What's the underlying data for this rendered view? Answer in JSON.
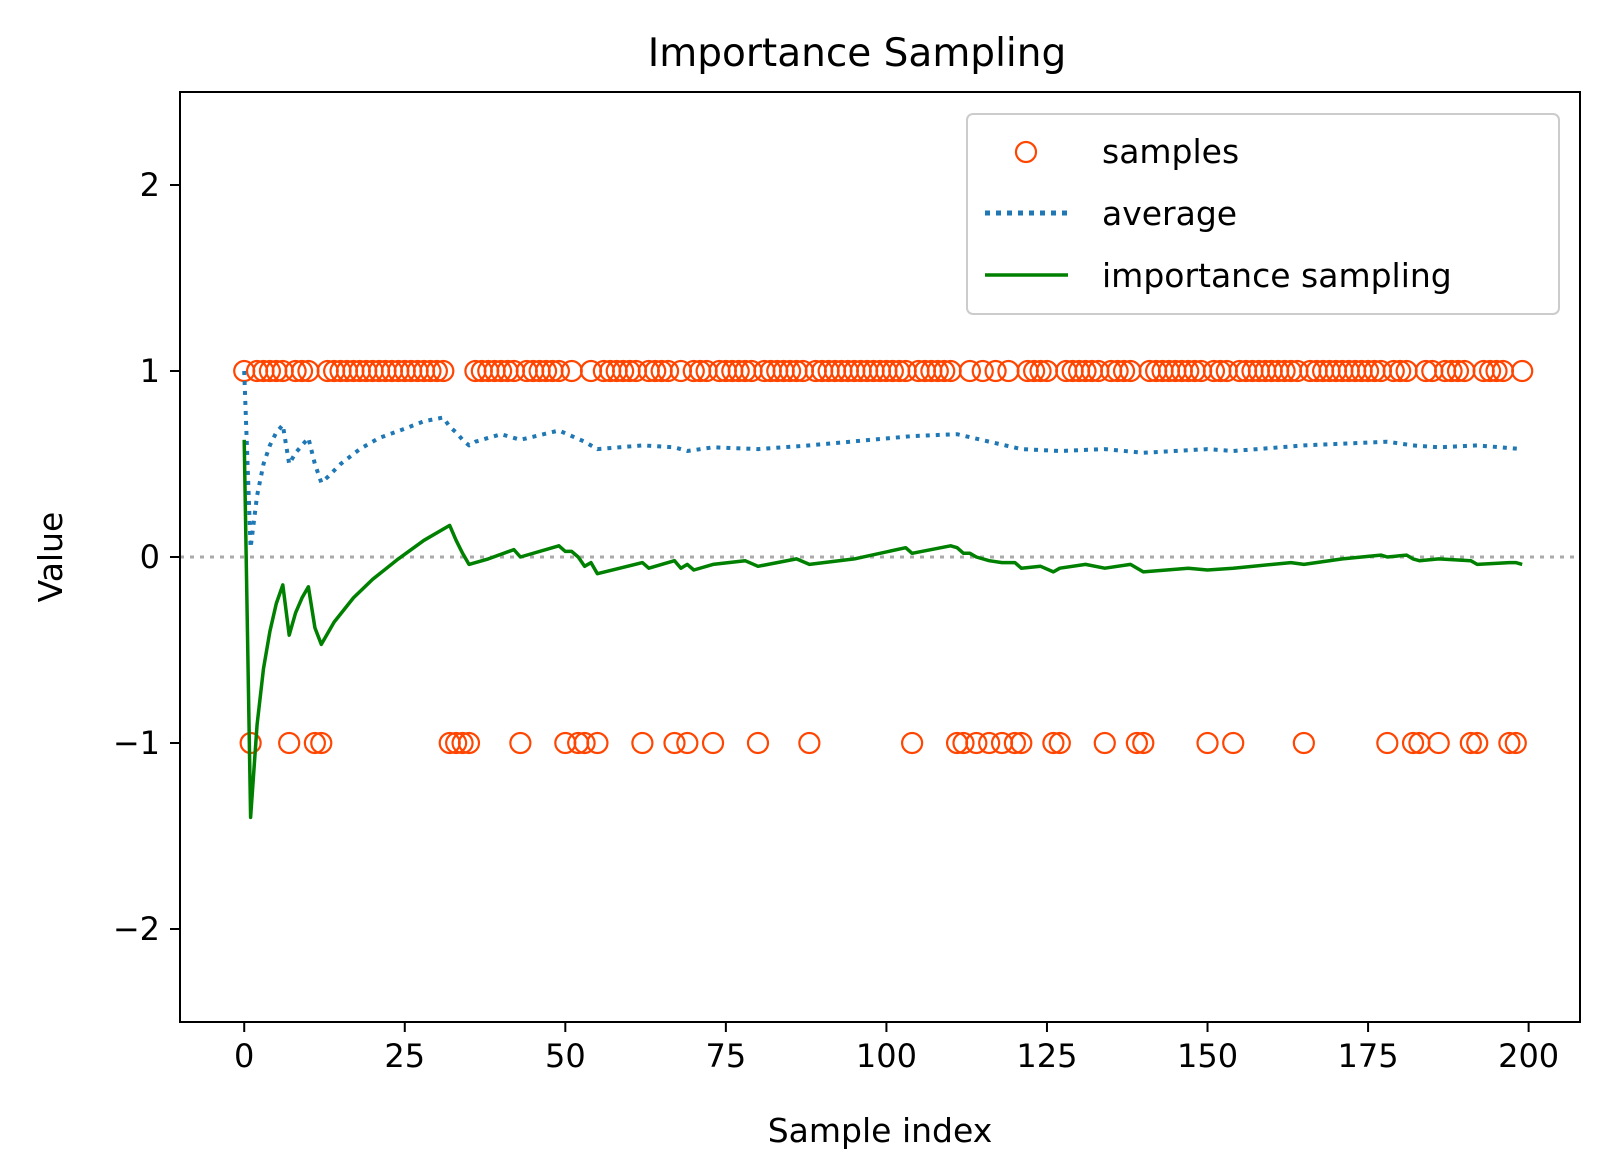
{
  "chart_data": {
    "type": "scatter",
    "title": "Importance Sampling",
    "xlabel": "Sample index",
    "ylabel": "Value",
    "xlim": [
      -10,
      208
    ],
    "ylim": [
      -2.5,
      2.5
    ],
    "x_ticks": [
      0,
      25,
      50,
      75,
      100,
      125,
      150,
      175,
      200
    ],
    "x_tick_labels": [
      "0",
      "25",
      "50",
      "75",
      "100",
      "125",
      "150",
      "175",
      "200"
    ],
    "y_ticks": [
      2,
      1,
      0,
      -1,
      -2
    ],
    "y_tick_labels": [
      "2",
      "1",
      "0",
      "−1",
      "−2"
    ],
    "grid": false,
    "reference_line": {
      "y": 0,
      "style": "dotted",
      "color": "#aaaaaa"
    },
    "legend": {
      "position": "upper-right",
      "entries": [
        "samples",
        "average",
        "importance sampling"
      ]
    },
    "series": [
      {
        "name": "samples",
        "kind": "scatter",
        "marker": "open-circle",
        "color": "#ff4500",
        "low_value": -1,
        "high_value": 1,
        "points_count": 200,
        "minus_one_indices": [
          1,
          7,
          11,
          12,
          32,
          33,
          34,
          35,
          43,
          50,
          52,
          53,
          55,
          62,
          67,
          69,
          73,
          80,
          88,
          104,
          111,
          112,
          114,
          116,
          118,
          120,
          121,
          126,
          127,
          134,
          139,
          140,
          150,
          154,
          165,
          178,
          182,
          183,
          186,
          191,
          192,
          197,
          198
        ]
      },
      {
        "name": "average",
        "kind": "line",
        "style": "dotted",
        "color": "#1f77b4",
        "x": [
          0,
          1,
          2,
          3,
          4,
          5,
          6,
          7,
          8,
          9,
          10,
          11,
          12,
          13,
          15,
          18,
          21,
          25,
          28,
          31,
          32,
          33,
          34,
          35,
          36,
          40,
          43,
          49,
          53,
          55,
          62,
          67,
          69,
          73,
          80,
          88,
          104,
          111,
          116,
          121,
          127,
          134,
          140,
          150,
          154,
          165,
          178,
          182,
          186,
          192,
          199
        ],
        "values": [
          1.0,
          0.05,
          0.33,
          0.5,
          0.6,
          0.67,
          0.71,
          0.5,
          0.56,
          0.6,
          0.64,
          0.5,
          0.4,
          0.43,
          0.5,
          0.58,
          0.64,
          0.69,
          0.73,
          0.75,
          0.7,
          0.67,
          0.63,
          0.6,
          0.62,
          0.66,
          0.63,
          0.68,
          0.62,
          0.58,
          0.6,
          0.59,
          0.57,
          0.59,
          0.58,
          0.6,
          0.65,
          0.66,
          0.62,
          0.58,
          0.57,
          0.58,
          0.56,
          0.58,
          0.57,
          0.6,
          0.62,
          0.6,
          0.59,
          0.6,
          0.58
        ]
      },
      {
        "name": "importance sampling",
        "kind": "line",
        "style": "solid",
        "color": "#008000",
        "x": [
          0,
          1,
          2,
          3,
          4,
          5,
          6,
          7,
          8,
          9,
          10,
          11,
          12,
          14,
          17,
          20,
          24,
          28,
          32,
          33,
          34,
          35,
          38,
          42,
          43,
          49,
          50,
          51,
          52,
          53,
          54,
          55,
          62,
          63,
          67,
          68,
          69,
          70,
          73,
          78,
          80,
          86,
          88,
          95,
          103,
          104,
          110,
          111,
          112,
          113,
          114,
          116,
          118,
          120,
          121,
          124,
          126,
          127,
          131,
          134,
          138,
          140,
          147,
          150,
          154,
          163,
          165,
          171,
          177,
          178,
          181,
          182,
          183,
          186,
          191,
          192,
          197,
          198,
          199
        ],
        "values": [
          0.63,
          -1.4,
          -0.9,
          -0.6,
          -0.4,
          -0.25,
          -0.15,
          -0.42,
          -0.3,
          -0.22,
          -0.16,
          -0.38,
          -0.47,
          -0.35,
          -0.22,
          -0.12,
          -0.01,
          0.09,
          0.17,
          0.09,
          0.02,
          -0.04,
          -0.01,
          0.04,
          0.0,
          0.06,
          0.03,
          0.03,
          0.0,
          -0.05,
          -0.03,
          -0.09,
          -0.03,
          -0.06,
          -0.02,
          -0.06,
          -0.04,
          -0.07,
          -0.04,
          -0.02,
          -0.05,
          -0.01,
          -0.04,
          -0.01,
          0.05,
          0.02,
          0.06,
          0.05,
          0.02,
          0.02,
          0.0,
          -0.02,
          -0.03,
          -0.03,
          -0.06,
          -0.05,
          -0.08,
          -0.06,
          -0.04,
          -0.06,
          -0.04,
          -0.08,
          -0.06,
          -0.07,
          -0.06,
          -0.03,
          -0.04,
          -0.01,
          0.01,
          0.0,
          0.01,
          -0.01,
          -0.02,
          -0.01,
          -0.02,
          -0.04,
          -0.03,
          -0.03,
          -0.04
        ]
      }
    ]
  }
}
